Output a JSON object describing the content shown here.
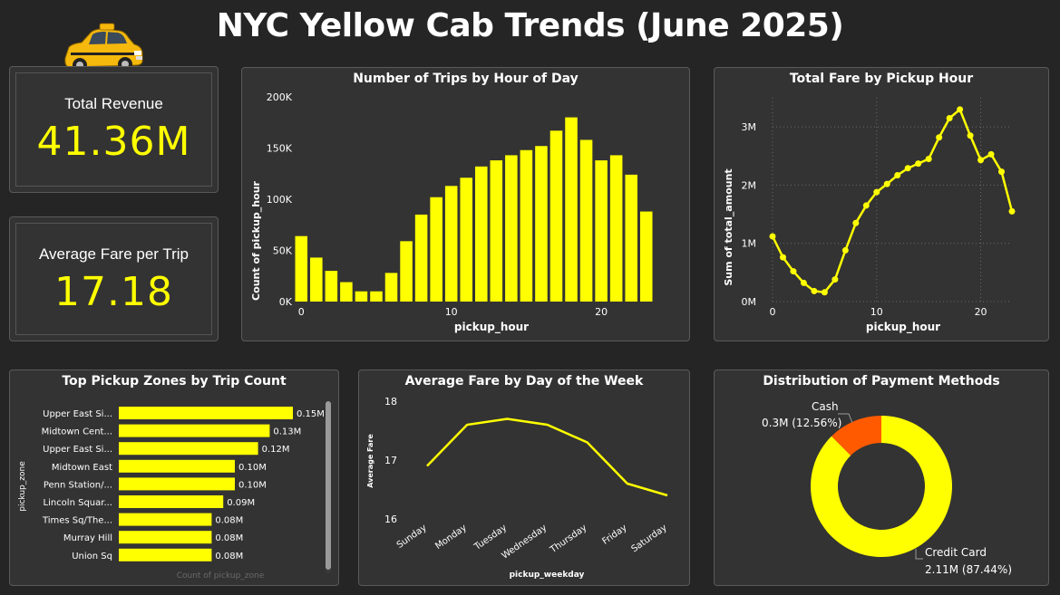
{
  "page": {
    "title": "NYC Yellow Cab Trends (June 2025)"
  },
  "colors": {
    "accent": "#ffff00",
    "cash": "#ff5a00",
    "background": "#252525",
    "panel": "#333333"
  },
  "icons": {
    "logo": "yellow-taxi-cab"
  },
  "kpis": {
    "revenue": {
      "label": "Total Revenue",
      "value": "41.36M"
    },
    "avg_fare": {
      "label": "Average Fare per Trip",
      "value": "17.18"
    }
  },
  "chart_data": [
    {
      "type": "bar",
      "title": "Number of Trips by Hour of Day",
      "xlabel": "pickup_hour",
      "ylabel": "Count of pickup_hour",
      "x": [
        0,
        1,
        2,
        3,
        4,
        5,
        6,
        7,
        8,
        9,
        10,
        11,
        12,
        13,
        14,
        15,
        16,
        17,
        18,
        19,
        20,
        21,
        22,
        23
      ],
      "values": [
        64000,
        43000,
        30000,
        19000,
        10000,
        10000,
        28000,
        59000,
        85000,
        102000,
        113000,
        121000,
        132000,
        138000,
        143000,
        148000,
        152000,
        167000,
        180000,
        158000,
        138000,
        143000,
        124000,
        88000
      ],
      "yticks": [
        "0K",
        "50K",
        "100K",
        "150K",
        "200K"
      ],
      "xticks": [
        "0",
        "10",
        "20"
      ],
      "ylim": [
        0,
        200000
      ],
      "grid": false
    },
    {
      "type": "line",
      "title": "Total Fare by Pickup Hour",
      "xlabel": "pickup_hour",
      "ylabel": "Sum of total_amount",
      "x": [
        0,
        1,
        2,
        3,
        4,
        5,
        6,
        7,
        8,
        9,
        10,
        11,
        12,
        13,
        14,
        15,
        16,
        17,
        18,
        19,
        20,
        21,
        22,
        23
      ],
      "values": [
        1.12,
        0.76,
        0.52,
        0.32,
        0.18,
        0.16,
        0.38,
        0.88,
        1.35,
        1.65,
        1.88,
        2.02,
        2.17,
        2.29,
        2.37,
        2.45,
        2.82,
        3.15,
        3.3,
        2.85,
        2.43,
        2.53,
        2.23,
        1.55
      ],
      "unit": "M",
      "yticks": [
        "0M",
        "1M",
        "2M",
        "3M"
      ],
      "xticks": [
        "0",
        "10",
        "20"
      ],
      "ylim": [
        0,
        3.5
      ],
      "grid": true
    },
    {
      "type": "bar",
      "orientation": "horizontal",
      "title": "Top Pickup Zones by Trip Count",
      "xlabel": "Count of pickup_zone",
      "ylabel": "pickup_zone",
      "categories": [
        "Upper East Si...",
        "Midtown Cent...",
        "Upper East Si...",
        "Midtown East",
        "Penn Station/...",
        "Lincoln Squar...",
        "Times Sq/The...",
        "Murray Hill",
        "Union Sq"
      ],
      "values": [
        0.15,
        0.13,
        0.12,
        0.1,
        0.1,
        0.09,
        0.08,
        0.08,
        0.08
      ],
      "data_labels": [
        "0.15M",
        "0.13M",
        "0.12M",
        "0.10M",
        "0.10M",
        "0.09M",
        "0.08M",
        "0.08M",
        "0.08M"
      ],
      "unit": "M"
    },
    {
      "type": "line",
      "title": "Average Fare by Day of the Week",
      "xlabel": "pickup_weekday",
      "ylabel": "Average Fare",
      "categories": [
        "Sunday",
        "Monday",
        "Tuesday",
        "Wednesday",
        "Thursday",
        "Friday",
        "Saturday"
      ],
      "values": [
        16.9,
        17.6,
        17.7,
        17.6,
        17.3,
        16.6,
        16.4
      ],
      "yticks": [
        "16",
        "17",
        "18"
      ],
      "ylim": [
        16,
        18
      ],
      "grid": false
    },
    {
      "type": "pie",
      "variant": "donut",
      "title": "Distribution of Payment Methods",
      "slices": [
        {
          "name": "Credit Card",
          "value": 2.11,
          "label": "2.11M (87.44%)",
          "color": "#ffff00"
        },
        {
          "name": "Cash",
          "value": 0.3,
          "label": "0.3M (12.56%)",
          "color": "#ff5a00"
        }
      ]
    }
  ]
}
